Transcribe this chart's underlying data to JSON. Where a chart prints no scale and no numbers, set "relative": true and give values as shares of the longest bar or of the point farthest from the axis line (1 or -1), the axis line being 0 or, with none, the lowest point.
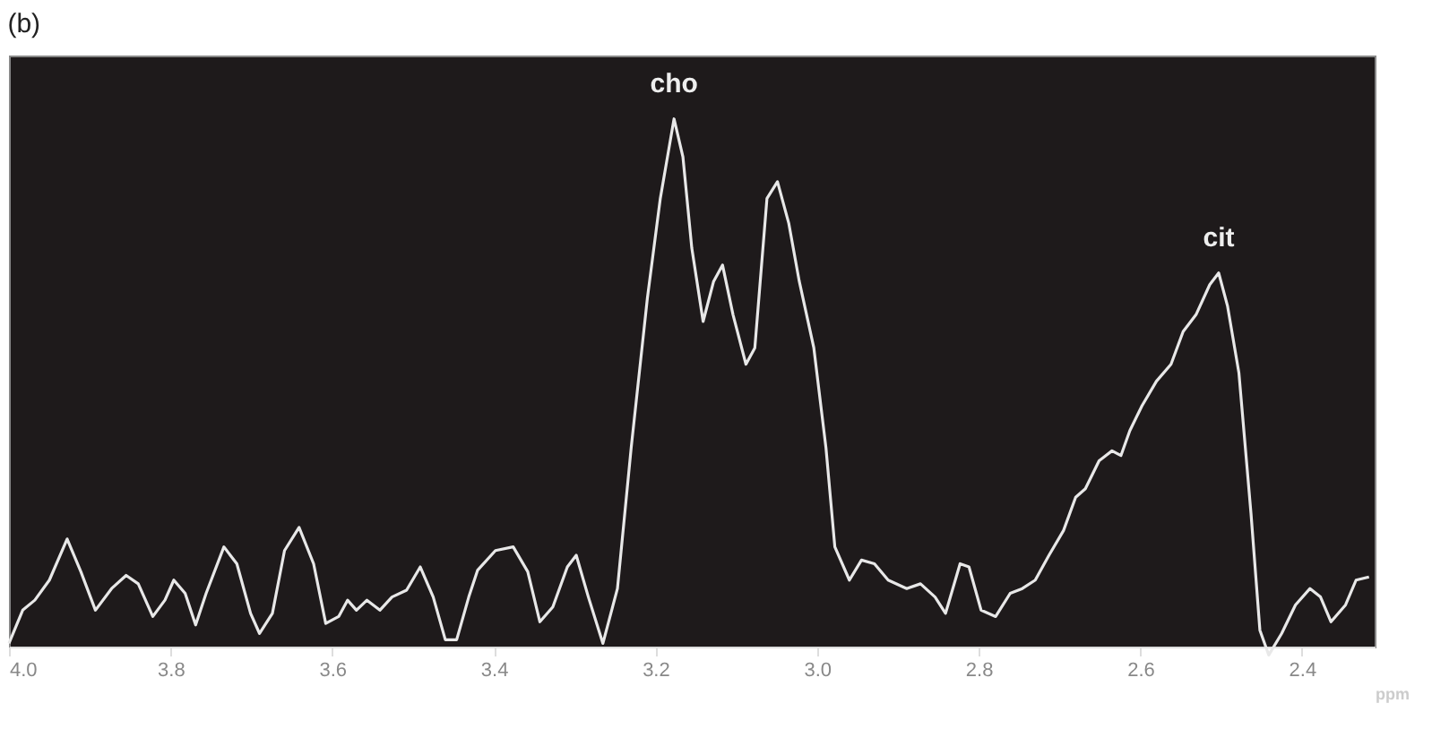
{
  "chart_data": {
    "type": "line",
    "title": "(b)",
    "xlabel": "ppm",
    "relative": true,
    "xlim": [
      4.0,
      2.31
    ],
    "xticks": [
      {
        "value": 4,
        "label": "4.0"
      },
      3.8,
      3.6,
      3.4,
      3.2,
      {
        "value": 3,
        "label": "3.0"
      },
      2.8,
      2.6,
      2.4
    ],
    "grid": false,
    "legend": false,
    "marker": "none",
    "line_style": "solid",
    "annotations": [
      {
        "text": "cho",
        "x": 3.177,
        "y": 1.0
      },
      {
        "text": "cit",
        "x": 2.503,
        "y": 0.708
      }
    ],
    "series": [
      {
        "color": "#e8e8e8",
        "x": [
          4.0,
          3.983,
          3.968,
          3.95,
          3.928,
          3.911,
          3.893,
          3.873,
          3.855,
          3.84,
          3.822,
          3.807,
          3.796,
          3.782,
          3.769,
          3.756,
          3.734,
          3.718,
          3.701,
          3.69,
          3.674,
          3.659,
          3.641,
          3.623,
          3.608,
          3.592,
          3.581,
          3.57,
          3.557,
          3.541,
          3.526,
          3.508,
          3.491,
          3.475,
          3.46,
          3.446,
          3.431,
          3.42,
          3.398,
          3.376,
          3.358,
          3.343,
          3.327,
          3.309,
          3.298,
          3.283,
          3.265,
          3.247,
          3.23,
          3.21,
          3.194,
          3.177,
          3.166,
          3.155,
          3.141,
          3.128,
          3.117,
          3.104,
          3.088,
          3.077,
          3.062,
          3.049,
          3.035,
          3.022,
          3.004,
          2.989,
          2.978,
          2.96,
          2.945,
          2.929,
          2.912,
          2.889,
          2.872,
          2.854,
          2.841,
          2.823,
          2.812,
          2.797,
          2.779,
          2.761,
          2.746,
          2.73,
          2.713,
          2.695,
          2.68,
          2.668,
          2.651,
          2.635,
          2.624,
          2.613,
          2.598,
          2.58,
          2.562,
          2.547,
          2.531,
          2.514,
          2.503,
          2.492,
          2.478,
          2.463,
          2.452,
          2.441,
          2.425,
          2.408,
          2.39,
          2.377,
          2.364,
          2.346,
          2.333,
          2.317
        ],
        "values": [
          0.006,
          0.069,
          0.088,
          0.126,
          0.204,
          0.142,
          0.069,
          0.11,
          0.135,
          0.119,
          0.057,
          0.088,
          0.126,
          0.101,
          0.041,
          0.101,
          0.189,
          0.157,
          0.063,
          0.025,
          0.063,
          0.182,
          0.226,
          0.157,
          0.044,
          0.057,
          0.088,
          0.069,
          0.088,
          0.069,
          0.094,
          0.107,
          0.151,
          0.094,
          0.013,
          0.013,
          0.094,
          0.145,
          0.182,
          0.189,
          0.142,
          0.047,
          0.075,
          0.151,
          0.173,
          0.094,
          0.006,
          0.11,
          0.377,
          0.66,
          0.849,
          1.0,
          0.928,
          0.755,
          0.616,
          0.692,
          0.723,
          0.629,
          0.535,
          0.566,
          0.849,
          0.881,
          0.802,
          0.692,
          0.566,
          0.377,
          0.189,
          0.126,
          0.164,
          0.157,
          0.126,
          0.11,
          0.119,
          0.094,
          0.063,
          0.157,
          0.151,
          0.069,
          0.057,
          0.101,
          0.11,
          0.126,
          0.173,
          0.22,
          0.283,
          0.299,
          0.352,
          0.371,
          0.362,
          0.409,
          0.456,
          0.503,
          0.535,
          0.597,
          0.629,
          0.686,
          0.708,
          0.645,
          0.519,
          0.252,
          0.031,
          -0.016,
          0.025,
          0.079,
          0.11,
          0.094,
          0.047,
          0.079,
          0.126,
          0.132
        ]
      }
    ]
  }
}
